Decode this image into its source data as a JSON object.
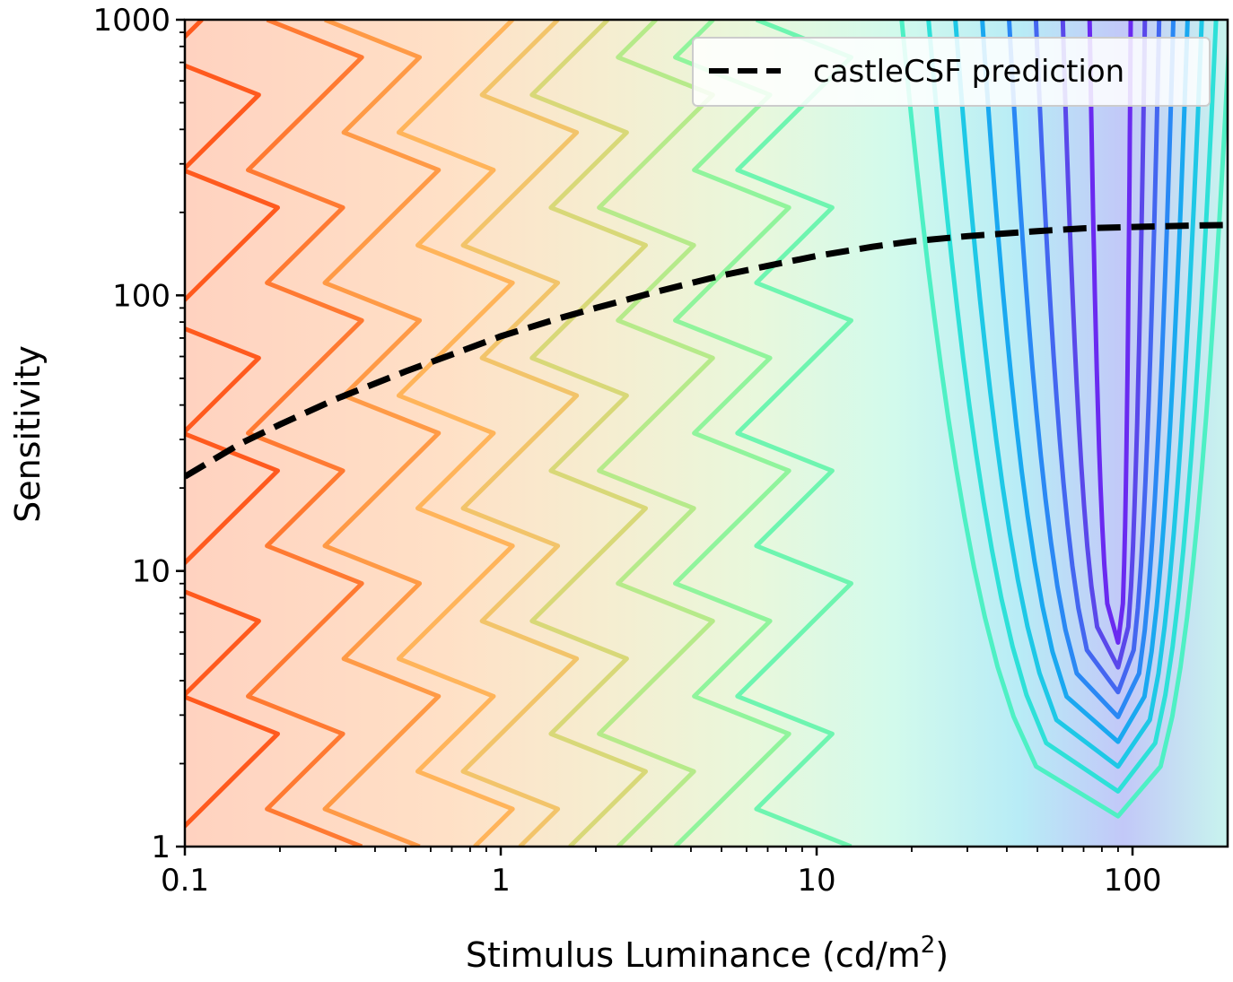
{
  "chart_data": {
    "type": "contour",
    "xlabel": "Stimulus Luminance (cd/m",
    "xlabel_superscript": "2",
    "xlabel_suffix": ")",
    "ylabel": "Sensitivity",
    "x_scale": "log",
    "y_scale": "log",
    "xlim": [
      0.1,
      200
    ],
    "ylim": [
      1,
      1000
    ],
    "x_ticks": [
      {
        "value": 0.1,
        "label": "0.1"
      },
      {
        "value": 1,
        "label": "1"
      },
      {
        "value": 10,
        "label": "10"
      },
      {
        "value": 100,
        "label": "100"
      }
    ],
    "y_ticks": [
      {
        "value": 1,
        "label": "1"
      },
      {
        "value": 10,
        "label": "10"
      },
      {
        "value": 100,
        "label": "100"
      },
      {
        "value": 1000,
        "label": "1000"
      }
    ],
    "legend": {
      "position": "top-right",
      "entries": [
        "castleCSF prediction"
      ]
    },
    "colormap": "rainbow",
    "contour_peak": {
      "x": 90,
      "y_range": [
        5.5,
        1000
      ]
    },
    "contour_level_colors": [
      "#ff5a1e",
      "#ff7a32",
      "#ff9a46",
      "#ffb45a",
      "#f2c46a",
      "#d8d878",
      "#b6ea8a",
      "#90f49c",
      "#6ef5b0",
      "#4ef0c4",
      "#2ee0d8",
      "#1ec8e6",
      "#1aa8f0",
      "#2a88f4",
      "#4466f0",
      "#5a48ea",
      "#6a2af0"
    ],
    "series": [
      {
        "name": "castleCSF prediction",
        "style": "dashed",
        "color": "#000000",
        "x": [
          0.1,
          0.15,
          0.2,
          0.3,
          0.5,
          0.7,
          1,
          1.5,
          2,
          3,
          5,
          7,
          10,
          15,
          20,
          30,
          50,
          70,
          100,
          150,
          200
        ],
        "y": [
          22,
          29,
          34,
          42,
          53,
          61,
          71,
          82,
          90,
          102,
          118,
          128,
          139,
          150,
          157,
          164,
          171,
          175,
          177,
          179,
          180
        ]
      }
    ]
  }
}
